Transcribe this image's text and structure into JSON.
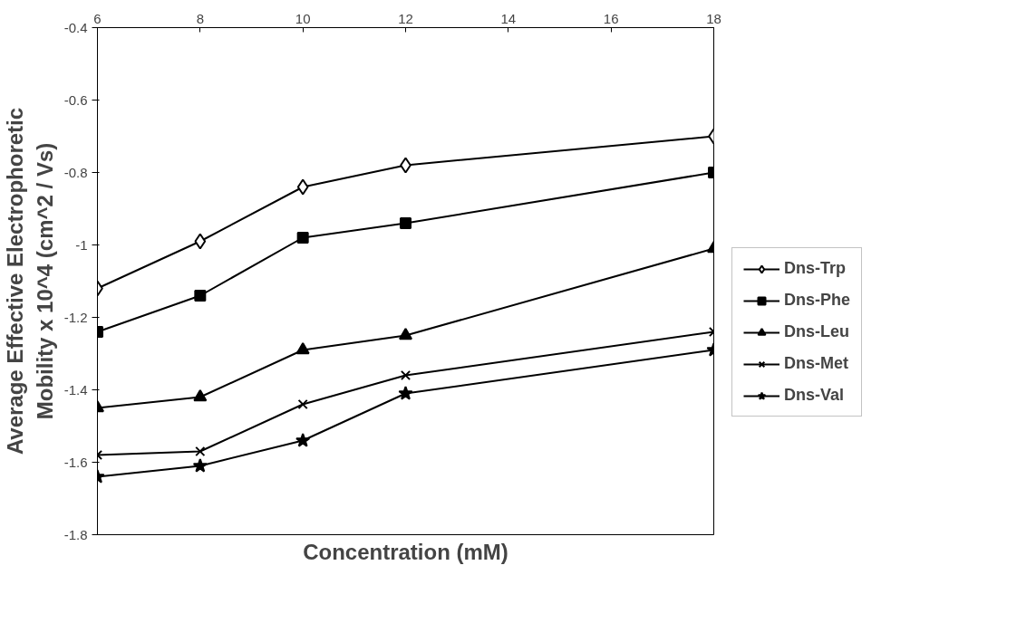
{
  "chart_data": {
    "type": "line",
    "xlabel": "Concentration (mM)",
    "ylabel": "Average Effective Electrophoretic\nMobility x 10^4 (cm^2 / Vs)",
    "x": [
      6,
      8,
      10,
      12,
      18
    ],
    "xlim": [
      6,
      18
    ],
    "xticks": [
      6,
      8,
      10,
      12,
      14,
      16,
      18
    ],
    "ylim": [
      -1.8,
      -0.4
    ],
    "yticks": [
      -1.8,
      -1.6,
      -1.4,
      -1.2,
      -1,
      -0.8,
      -0.6,
      -0.4
    ],
    "grid": false,
    "legend": "right",
    "series": [
      {
        "name": "Dns-Trp",
        "color": "#000000",
        "marker": "diamond",
        "values": [
          -1.12,
          -0.99,
          -0.84,
          -0.78,
          -0.7
        ]
      },
      {
        "name": "Dns-Phe",
        "color": "#000000",
        "marker": "square",
        "values": [
          -1.24,
          -1.14,
          -0.98,
          -0.94,
          -0.8
        ]
      },
      {
        "name": "Dns-Leu",
        "color": "#000000",
        "marker": "triangle",
        "values": [
          -1.45,
          -1.42,
          -1.29,
          -1.25,
          -1.01
        ]
      },
      {
        "name": "Dns-Met",
        "color": "#000000",
        "marker": "cross",
        "values": [
          -1.58,
          -1.57,
          -1.44,
          -1.36,
          -1.24
        ]
      },
      {
        "name": "Dns-Val",
        "color": "#000000",
        "marker": "star",
        "values": [
          -1.64,
          -1.61,
          -1.54,
          -1.41,
          -1.29
        ]
      }
    ]
  }
}
